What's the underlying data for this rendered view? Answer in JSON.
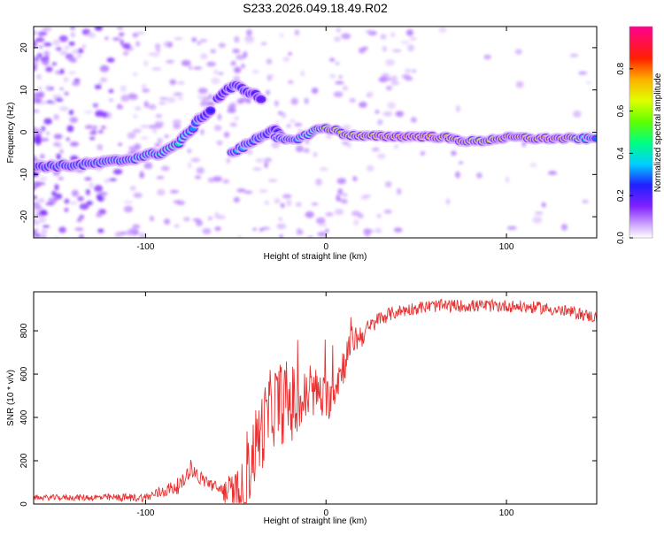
{
  "page_title": "S233.2026.049.18.49.R02",
  "chart_data": [
    {
      "type": "heatmap",
      "title": "S233.2026.049.18.49.R02",
      "xlabel": "Height of straight line (km)",
      "ylabel": "Frequency (Hz)",
      "xlim": [
        -162,
        150
      ],
      "ylim": [
        -25,
        25
      ],
      "xticks": [
        -100,
        0,
        100
      ],
      "yticks": [
        -20,
        -10,
        0,
        10,
        20
      ],
      "colorbar": {
        "label": "Normalized spectral amplitude",
        "range": [
          0,
          1
        ],
        "ticks": [
          "0.0",
          "0.2",
          "0.4",
          "0.6",
          "0.8"
        ]
      },
      "ridge": {
        "x": [
          -160,
          -150,
          -140,
          -130,
          -120,
          -110,
          -100,
          -92,
          -85,
          -80,
          -76,
          -72,
          -68,
          -64
        ],
        "freq": [
          -8,
          -8,
          -7.8,
          -7.5,
          -7,
          -6.5,
          -5.5,
          -5,
          -3.5,
          -2,
          0,
          2,
          4,
          5
        ],
        "amp": [
          0.35,
          0.4,
          0.4,
          0.4,
          0.45,
          0.45,
          0.5,
          0.5,
          0.55,
          0.5,
          0.45,
          0.4,
          0.35,
          0.3
        ]
      },
      "ridge_upper": {
        "x": [
          -60,
          -55,
          -50,
          -45,
          -40,
          -36
        ],
        "freq": [
          8,
          10,
          11,
          10,
          9,
          8
        ],
        "amp": [
          0.3,
          0.3,
          0.35,
          0.35,
          0.3,
          0.25
        ]
      },
      "ridge_lower": {
        "x": [
          -52,
          -48,
          -44,
          -40,
          -36,
          -32,
          -28,
          -24
        ],
        "freq": [
          -5,
          -4,
          -3,
          -2,
          -1,
          0,
          1,
          -2
        ],
        "amp": [
          0.4,
          0.45,
          0.45,
          0.4,
          0.4,
          0.35,
          0.3,
          0.4
        ]
      },
      "ridge_main": {
        "x": [
          -28,
          -20,
          -12,
          -6,
          0,
          5,
          10,
          20,
          30,
          45,
          55,
          65,
          75,
          85,
          95,
          105,
          115,
          125,
          135,
          145,
          150
        ],
        "freq": [
          -1.5,
          -2,
          -1,
          0.5,
          1,
          0.5,
          -0.5,
          -1,
          -1,
          -1,
          -1,
          -1.2,
          -2,
          -2.2,
          -1.5,
          -1.2,
          -1.5,
          -1.5,
          -1.5,
          -1.5,
          -1.5
        ],
        "amp": [
          0.45,
          0.4,
          0.5,
          0.55,
          0.7,
          0.8,
          0.75,
          0.8,
          0.85,
          0.95,
          0.9,
          0.85,
          0.8,
          0.75,
          0.8,
          0.85,
          0.8,
          0.9,
          0.8,
          0.45,
          0.4
        ]
      }
    },
    {
      "type": "line",
      "xlabel": "Height of straight line (km)",
      "ylabel": "SNR (10 * v/v)",
      "xlim": [
        -162,
        150
      ],
      "ylim": [
        0,
        980
      ],
      "xticks": [
        -100,
        0,
        100
      ],
      "yticks": [
        0,
        200,
        400,
        600,
        800
      ],
      "series": [
        {
          "name": "SNR",
          "color": "#e83030",
          "envelope_x": [
            -162,
            -120,
            -100,
            -90,
            -80,
            -75,
            -70,
            -65,
            -60,
            -50,
            -45,
            -40,
            -35,
            -30,
            -25,
            -20,
            -15,
            -10,
            -5,
            0,
            5,
            10,
            15,
            20,
            25,
            30,
            40,
            50,
            60,
            80,
            100,
            120,
            140,
            150
          ],
          "envelope_y": [
            30,
            30,
            30,
            60,
            90,
            170,
            120,
            100,
            70,
            50,
            70,
            250,
            350,
            450,
            470,
            470,
            450,
            500,
            520,
            470,
            550,
            650,
            760,
            780,
            820,
            860,
            890,
            905,
            915,
            915,
            915,
            905,
            880,
            860
          ],
          "noise_x": [
            -162,
            -100,
            -80,
            -60,
            -40,
            -20,
            -10,
            0,
            10,
            25,
            40,
            150
          ],
          "noise_amp": [
            12,
            20,
            40,
            30,
            180,
            200,
            120,
            110,
            90,
            40,
            30,
            28
          ]
        }
      ]
    }
  ]
}
